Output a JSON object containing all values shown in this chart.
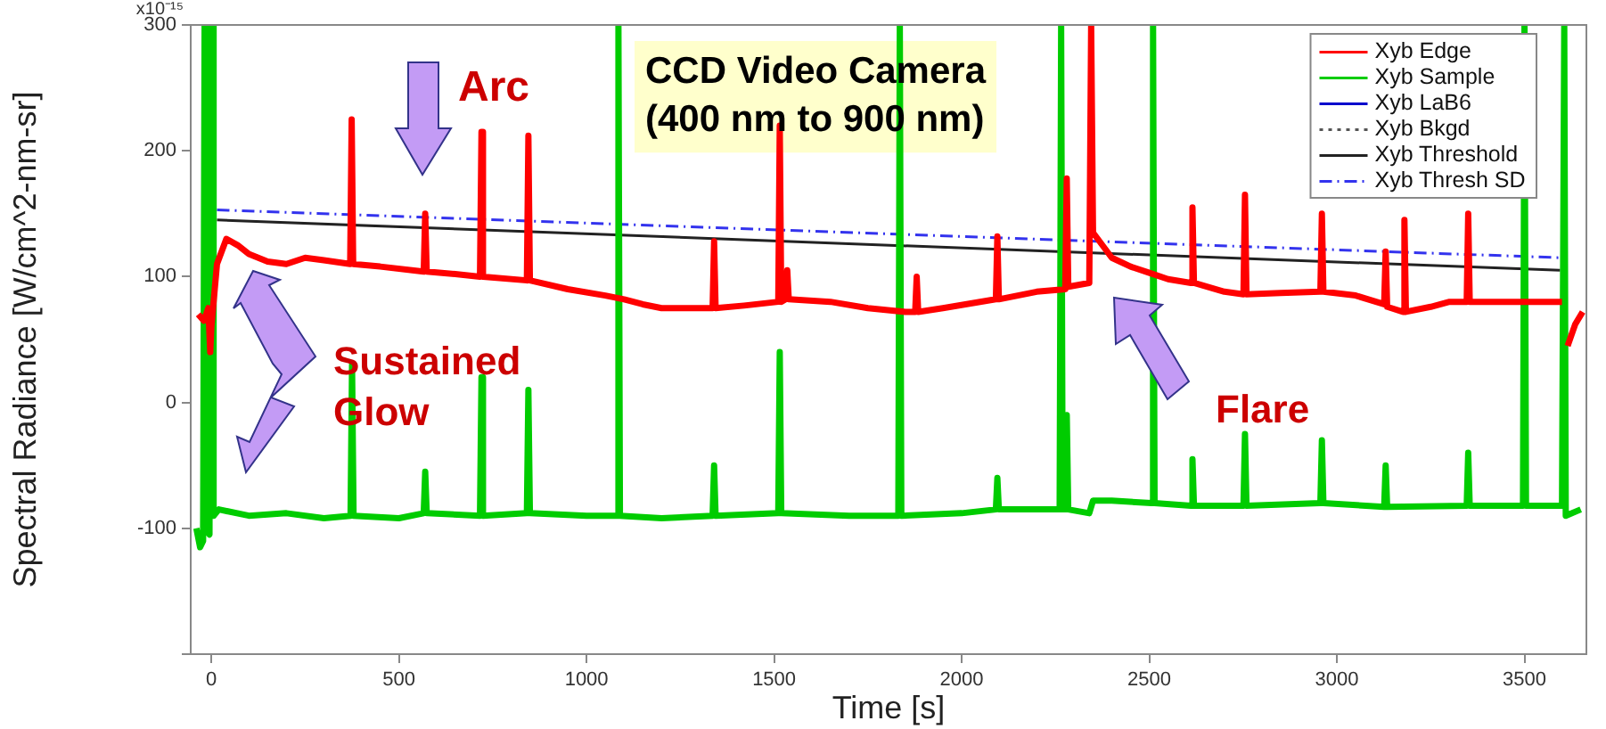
{
  "chart_data": {
    "type": "line",
    "xlabel": "Time [s]",
    "ylabel": "Spectral Radiance [W/cm^2-nm-sr]",
    "xlim": [
      -55,
      3665
    ],
    "xticks": [
      0,
      500,
      1000,
      1500,
      2000,
      2500,
      3000,
      3500
    ],
    "ylim": [
      -200,
      300
    ],
    "yticks": [
      {
        "value": -200,
        "label": null
      },
      -100,
      0,
      100,
      200,
      300
    ],
    "grid": false,
    "legend": "top right",
    "marker": "none",
    "annotations": [
      "Arc",
      "Sustained Glow",
      "Flare",
      "CCD Video Camera\n(400 nm to 900 nm)",
      "x10⁻¹⁵"
    ],
    "series": [
      {
        "name": "Xyb Edge",
        "color": "#ff0000",
        "line_style": "solid",
        "x": [
          -35,
          -20,
          -8,
          -3,
          0,
          15,
          40,
          70,
          100,
          150,
          200,
          250,
          300,
          370,
          374,
          378,
          450,
          566,
          570,
          574,
          650,
          716,
          720,
          724,
          841,
          845,
          849,
          950,
          1050,
          1100,
          1150,
          1200,
          1336,
          1340,
          1344,
          1420,
          1511,
          1515,
          1519,
          1531,
          1535,
          1539,
          1650,
          1750,
          1850,
          1876,
          1880,
          1884,
          1950,
          2091,
          2095,
          2099,
          2200,
          2276,
          2280,
          2284,
          2340,
          2345,
          2350,
          2400,
          2450,
          2500,
          2550,
          2611,
          2615,
          2619,
          2700,
          2751,
          2755,
          2759,
          2850,
          2956,
          2960,
          2964,
          3050,
          3126,
          3130,
          3134,
          3176,
          3180,
          3184,
          3250,
          3300,
          3346,
          3350,
          3354,
          3450,
          3600,
          3606,
          3615,
          3635,
          3655
        ],
        "values": [
          70,
          65,
          75,
          40,
          60,
          110,
          130,
          125,
          118,
          112,
          110,
          115,
          113,
          110,
          225,
          110,
          108,
          104,
          150,
          104,
          102,
          100,
          215,
          100,
          97,
          212,
          97,
          90,
          85,
          82,
          78,
          75,
          75,
          128,
          75,
          77,
          80,
          220,
          80,
          82,
          105,
          82,
          80,
          75,
          72,
          72,
          100,
          72,
          75,
          82,
          132,
          82,
          88,
          90,
          178,
          92,
          95,
          300,
          135,
          115,
          108,
          103,
          98,
          95,
          155,
          95,
          88,
          86,
          165,
          86,
          87,
          88,
          150,
          88,
          85,
          78,
          120,
          76,
          72,
          145,
          72,
          76,
          80,
          80,
          150,
          80,
          80,
          80,
          null,
          45,
          62,
          72
        ]
      },
      {
        "name": "Xyb Sample",
        "color": "#00cc00",
        "line_style": "solid",
        "x": [
          -40,
          -30,
          -22,
          -18,
          -14,
          -5,
          -2,
          3,
          6,
          20,
          100,
          200,
          300,
          371,
          375,
          379,
          500,
          566,
          570,
          574,
          716,
          720,
          724,
          841,
          845,
          849,
          1000,
          1081,
          1085,
          1089,
          1200,
          1336,
          1340,
          1344,
          1511,
          1515,
          1519,
          1700,
          1831,
          1835,
          1839,
          2000,
          2091,
          2095,
          2099,
          2200,
          2261,
          2265,
          2269,
          2276,
          2280,
          2284,
          2340,
          2350,
          2400,
          2506,
          2510,
          2514,
          2611,
          2615,
          2619,
          2751,
          2755,
          2759,
          2956,
          2960,
          2964,
          3126,
          3130,
          3134,
          3346,
          3350,
          3354,
          3496,
          3500,
          3504,
          3600,
          3606,
          3610,
          3650
        ],
        "values": [
          -100,
          -115,
          -110,
          300,
          -100,
          -105,
          300,
          300,
          -90,
          -85,
          -90,
          -88,
          -92,
          -90,
          30,
          -90,
          -92,
          -88,
          -55,
          -88,
          -90,
          20,
          -90,
          -88,
          10,
          -88,
          -90,
          -90,
          300,
          -90,
          -92,
          -90,
          -50,
          -90,
          -88,
          40,
          -88,
          -90,
          -90,
          300,
          -90,
          -88,
          -85,
          -60,
          -85,
          -85,
          -85,
          300,
          -85,
          -85,
          -10,
          -85,
          -88,
          -78,
          -78,
          -80,
          300,
          -80,
          -82,
          -45,
          -82,
          -82,
          -25,
          -82,
          -80,
          -30,
          -80,
          -83,
          -50,
          -83,
          -82,
          -40,
          -82,
          -82,
          300,
          -82,
          -82,
          300,
          -90,
          -85
        ]
      },
      {
        "name": "Xyb LaB6",
        "color": "#0000cc",
        "line_style": "solid"
      },
      {
        "name": "Xyb Bkgd",
        "color": "#555555",
        "line_style": "dotted"
      },
      {
        "name": "Xyb Threshold",
        "color": "#222222",
        "line_style": "solid",
        "x": [
          15,
          3595
        ],
        "values": [
          145,
          105
        ]
      },
      {
        "name": "Xyb Thresh SD",
        "color": "#3333ee",
        "line_style": "dashed",
        "x": [
          15,
          3595
        ],
        "values": [
          153,
          115
        ]
      }
    ]
  }
}
